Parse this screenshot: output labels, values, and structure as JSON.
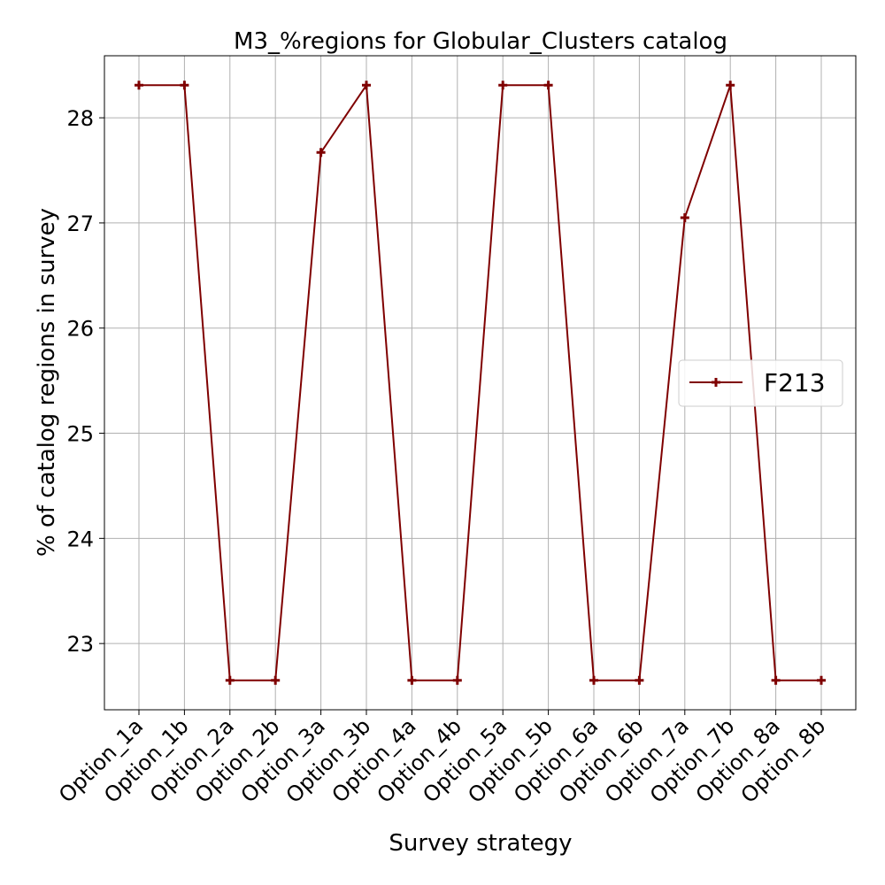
{
  "chart_data": {
    "type": "line",
    "title": "M3_%regions for Globular_Clusters catalog",
    "xlabel": "Survey strategy",
    "ylabel": "% of catalog regions in survey",
    "categories": [
      "Option_1a",
      "Option_1b",
      "Option_2a",
      "Option_2b",
      "Option_3a",
      "Option_3b",
      "Option_4a",
      "Option_4b",
      "Option_5a",
      "Option_5b",
      "Option_6a",
      "Option_6b",
      "Option_7a",
      "Option_7b",
      "Option_8a",
      "Option_8b"
    ],
    "series": [
      {
        "name": "F213",
        "color": "#7f0000",
        "marker": "plus",
        "values": [
          28.31,
          28.31,
          22.65,
          22.65,
          27.67,
          28.31,
          22.65,
          22.65,
          28.31,
          28.31,
          22.65,
          22.65,
          27.05,
          28.31,
          22.65,
          22.65
        ]
      }
    ],
    "ylim": [
      22.37,
      28.59
    ],
    "yticks": [
      23,
      24,
      25,
      26,
      27,
      28
    ],
    "grid": true,
    "legend_position": "center-right"
  }
}
